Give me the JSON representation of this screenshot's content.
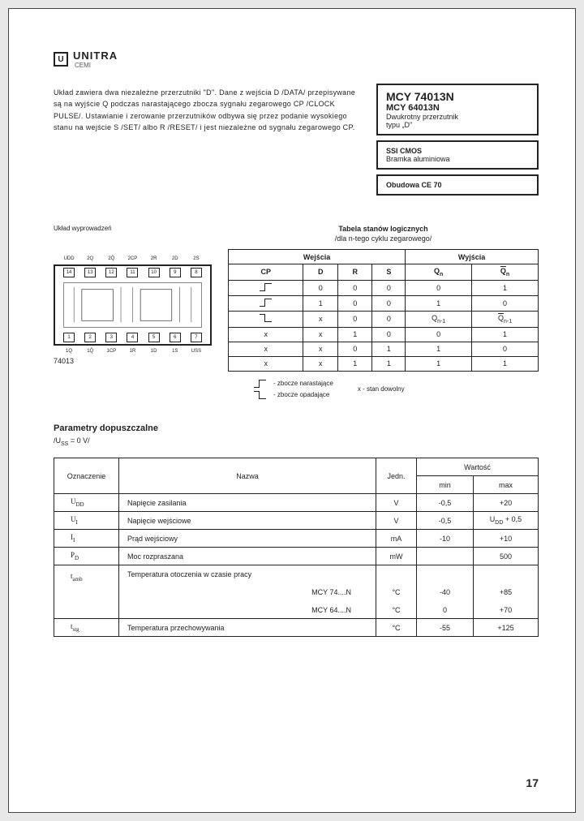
{
  "logo": {
    "icon": "U",
    "name": "UNITRA",
    "sub": "CEMI"
  },
  "description": "Układ zawiera dwa niezależne przerzutniki \"D\". Dane z wejścia D /DATA/ przepisywane są na wyjście Q podczas narastającego zbocza sygnału zegarowego CP /CLOCK PULSE/. Ustawianie i zerowanie przerzutników odbywa się przez podanie wysokiego stanu na wejście S /SET/ albo R /RESET/ i jest niezależne od sygnału zegarowego CP.",
  "part": {
    "main": "MCY 74013N",
    "sub": "MCY 64013N",
    "desc1": "Dwukrotny przerzutnik",
    "desc2": "typu „D\"",
    "tech1": "SSI CMOS",
    "tech2": "Bramka aluminiowa",
    "pkg": "Obudowa CE 70"
  },
  "pinout": {
    "label": "Układ wyprowadzeń",
    "top_labels": [
      "UDD",
      "2Q",
      "2Q̄",
      "2CP",
      "2R",
      "2D",
      "2S"
    ],
    "top_pins": [
      "14",
      "13",
      "12",
      "11",
      "10",
      "9",
      "8"
    ],
    "bot_pins": [
      "1",
      "2",
      "3",
      "4",
      "5",
      "6",
      "7"
    ],
    "bot_labels": [
      "1Q",
      "1Q̄",
      "1CP",
      "1R",
      "1D",
      "1S",
      "USS"
    ],
    "chip_name": "74013"
  },
  "truth": {
    "title": "Tabela stanów logicznych",
    "sub": "/dla n-tego cyklu zegarowego/",
    "group_in": "Wejścia",
    "group_out": "Wyjścia",
    "headers": [
      "CP",
      "D",
      "R",
      "S",
      "Qn",
      "Q̄n"
    ],
    "rows": [
      {
        "cp": "rise",
        "d": "0",
        "r": "0",
        "s": "0",
        "q": "0",
        "qb": "1"
      },
      {
        "cp": "rise",
        "d": "1",
        "r": "0",
        "s": "0",
        "q": "1",
        "qb": "0"
      },
      {
        "cp": "fall",
        "d": "x",
        "r": "0",
        "s": "0",
        "q": "Qn-1",
        "qb": "Q̄n-1"
      },
      {
        "cp": "x",
        "d": "x",
        "r": "1",
        "s": "0",
        "q": "0",
        "qb": "1"
      },
      {
        "cp": "x",
        "d": "x",
        "r": "0",
        "s": "1",
        "q": "1",
        "qb": "0"
      },
      {
        "cp": "x",
        "d": "x",
        "r": "1",
        "s": "1",
        "q": "1",
        "qb": "1"
      }
    ],
    "legend_rise": "- zbocze narastające",
    "legend_fall": "- zbocze opadające",
    "legend_x": "x - stan dowolny"
  },
  "params": {
    "heading": "Parametry dopuszczalne",
    "condition": "/USS = 0 V/",
    "col_sym": "Oznaczenie",
    "col_name": "Nazwa",
    "col_unit": "Jedn.",
    "col_val": "Wartość",
    "col_min": "min",
    "col_max": "max",
    "rows": [
      {
        "sym": "UDD",
        "name": "Napięcie zasilania",
        "unit": "V",
        "min": "-0,5",
        "max": "+20"
      },
      {
        "sym": "UI",
        "name": "Napięcie wejściowe",
        "unit": "V",
        "min": "-0,5",
        "max": "UDD + 0,5"
      },
      {
        "sym": "II",
        "name": "Prąd wejściowy",
        "unit": "mA",
        "min": "-10",
        "max": "+10"
      },
      {
        "sym": "PD",
        "name": "Moc rozpraszana",
        "unit": "mW",
        "min": "",
        "max": "500"
      }
    ],
    "temp_sym": "tamb",
    "temp_name": "Temperatura otoczenia w czasie pracy",
    "temp_r1_name": "MCY 74....N",
    "temp_r1_unit": "°C",
    "temp_r1_min": "-40",
    "temp_r1_max": "+85",
    "temp_r2_name": "MCY 64....N",
    "temp_r2_unit": "°C",
    "temp_r2_min": "0",
    "temp_r2_max": "+70",
    "stg_sym": "tstg",
    "stg_name": "Temperatura przechowywania",
    "stg_unit": "°C",
    "stg_min": "-55",
    "stg_max": "+125"
  },
  "page_number": "17"
}
